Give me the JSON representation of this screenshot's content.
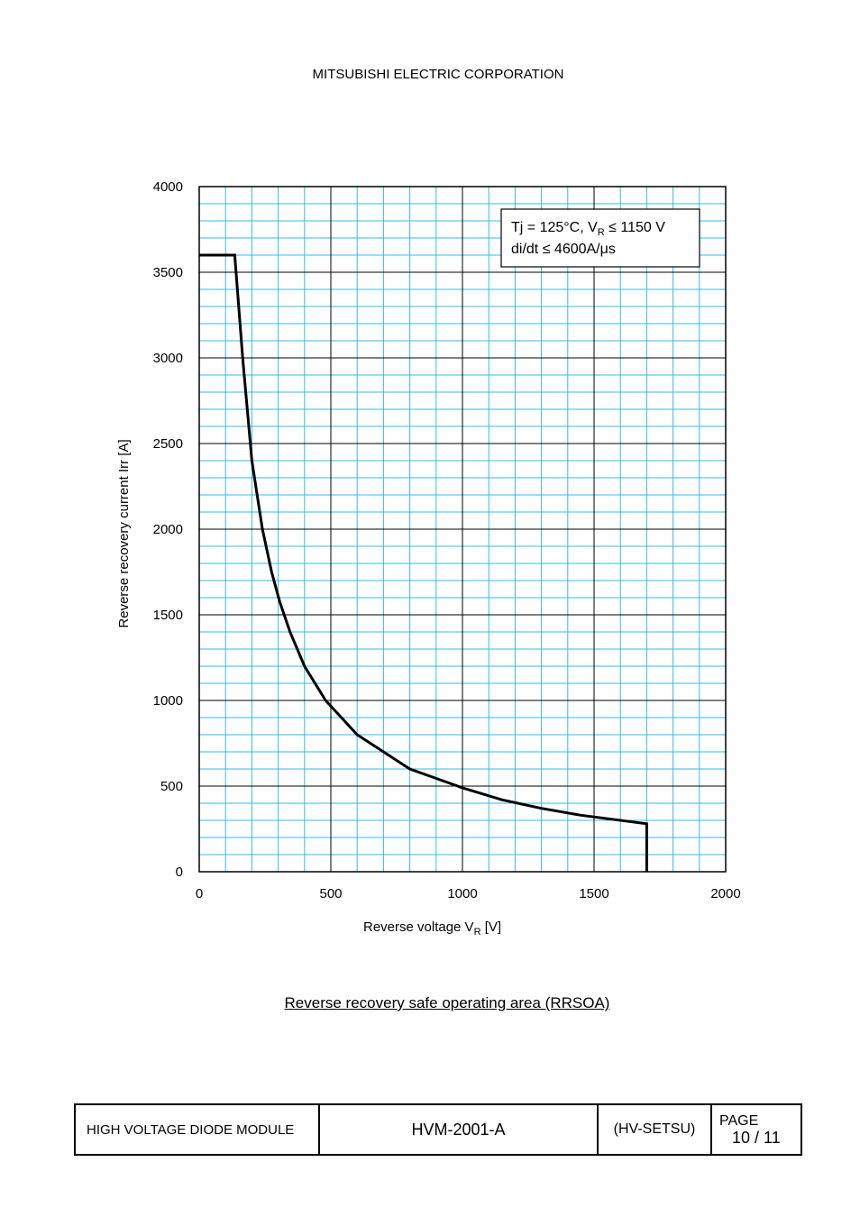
{
  "header": {
    "company": "MITSUBISHI ELECTRIC CORPORATION"
  },
  "chart_data": {
    "type": "line",
    "title": "",
    "xlabel": {
      "main": "Reverse voltage    V",
      "sub": "R",
      "unit": " [V]"
    },
    "ylabel": "Reverse recovery current    Irr [A]",
    "xlim": [
      0,
      2000
    ],
    "ylim": [
      0,
      4000
    ],
    "x_ticks": [
      "0",
      "500",
      "1000",
      "1500",
      "2000"
    ],
    "y_ticks": [
      "0",
      "500",
      "1000",
      "1500",
      "2000",
      "2500",
      "3000",
      "3500",
      "4000"
    ],
    "grid": true,
    "x_minor_step": 100,
    "y_minor_step": 100,
    "annotation": {
      "line1_a": "Tj = 125°C, V",
      "line1_sub": "R",
      "line1_b": " ≤ 1150 V",
      "line2": "di/dt ≤ 4600A/μs"
    },
    "series": [
      {
        "x": [
          0,
          135,
          165,
          200,
          240,
          275,
          305,
          345,
          400,
          480,
          600,
          800,
          1000,
          1150,
          1300,
          1450,
          1700,
          1700
        ],
        "y": [
          3600,
          3600,
          3000,
          2400,
          2000,
          1750,
          1580,
          1400,
          1200,
          1000,
          800,
          600,
          490,
          420,
          370,
          330,
          280,
          0
        ]
      }
    ],
    "colors": {
      "minor_grid": "#33bbe8",
      "major_grid": "#000000",
      "curve": "#000000"
    }
  },
  "caption": "Reverse recovery safe operating area (RRSOA)",
  "footer": {
    "product": "HIGH VOLTAGE DIODE MODULE",
    "model": "HVM-2001-A",
    "doc_type": "(HV-SETSU)",
    "page_label": "PAGE",
    "page_number": "10 / 11"
  }
}
